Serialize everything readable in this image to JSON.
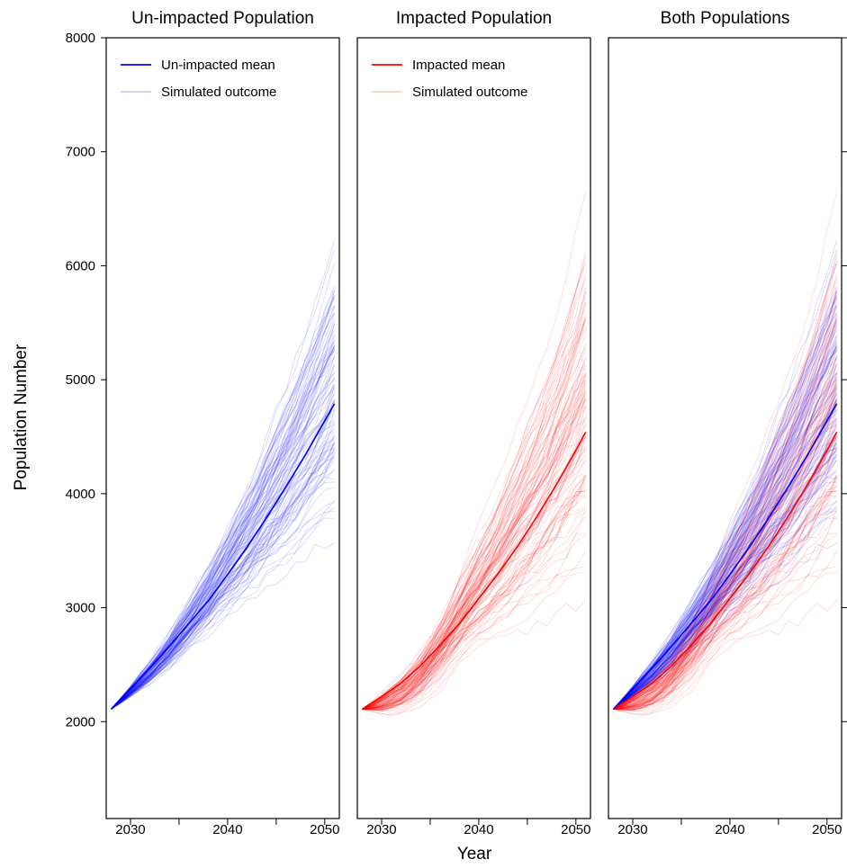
{
  "chart_data": {
    "type": "line",
    "x_label": "Year",
    "y_label": "Population Number",
    "ylim": [
      1150,
      8000
    ],
    "y_ticks": [
      2000,
      3000,
      4000,
      5000,
      6000,
      7000,
      8000
    ],
    "xlim": [
      2027.5,
      2051.5
    ],
    "x_ticks": [
      2030,
      2040,
      2050
    ],
    "x_minor_ticks": [
      2030,
      2035,
      2040,
      2045,
      2050
    ],
    "start": {
      "year": 2028,
      "value": 2110
    },
    "end_year": 2051,
    "simulations_per_population": 100,
    "colors": {
      "unimpacted": "#0000ff",
      "impacted": "#ff0000"
    },
    "panels": [
      {
        "title": "Un-impacted Population",
        "legend": [
          {
            "label": "Un-impacted mean",
            "kind": "mean",
            "color": "#0000ff"
          },
          {
            "label": "Simulated outcome",
            "kind": "sim",
            "color": "#0000ff"
          }
        ],
        "series": [
          "unimpacted"
        ]
      },
      {
        "title": "Impacted Population",
        "legend": [
          {
            "label": "Impacted mean",
            "kind": "mean",
            "color": "#ff0000"
          },
          {
            "label": "Simulated outcome",
            "kind": "sim",
            "color": "#ff0000"
          }
        ],
        "series": [
          "impacted"
        ]
      },
      {
        "title": "Both Populations",
        "legend": [],
        "series": [
          "impacted",
          "unimpacted"
        ]
      }
    ],
    "mean_series": {
      "unimpacted": {
        "x": [
          2028,
          2030,
          2032,
          2034,
          2036,
          2038,
          2040,
          2042,
          2044,
          2046,
          2048,
          2050,
          2051
        ],
        "y": [
          2110,
          2290,
          2470,
          2660,
          2860,
          3060,
          3290,
          3530,
          3790,
          4060,
          4340,
          4640,
          4790
        ]
      },
      "impacted": {
        "x": [
          2028,
          2030,
          2032,
          2034,
          2036,
          2038,
          2040,
          2042,
          2044,
          2046,
          2048,
          2050,
          2051
        ],
        "y": [
          2110,
          2220,
          2340,
          2490,
          2670,
          2860,
          3080,
          3300,
          3540,
          3800,
          4080,
          4380,
          4540
        ]
      }
    },
    "simulated_end_range": {
      "unimpacted": [
        3150,
        6800
      ],
      "impacted": [
        2600,
        6800
      ]
    },
    "simulated_min_value": {
      "unimpacted": 1800,
      "impacted": 1600
    }
  }
}
